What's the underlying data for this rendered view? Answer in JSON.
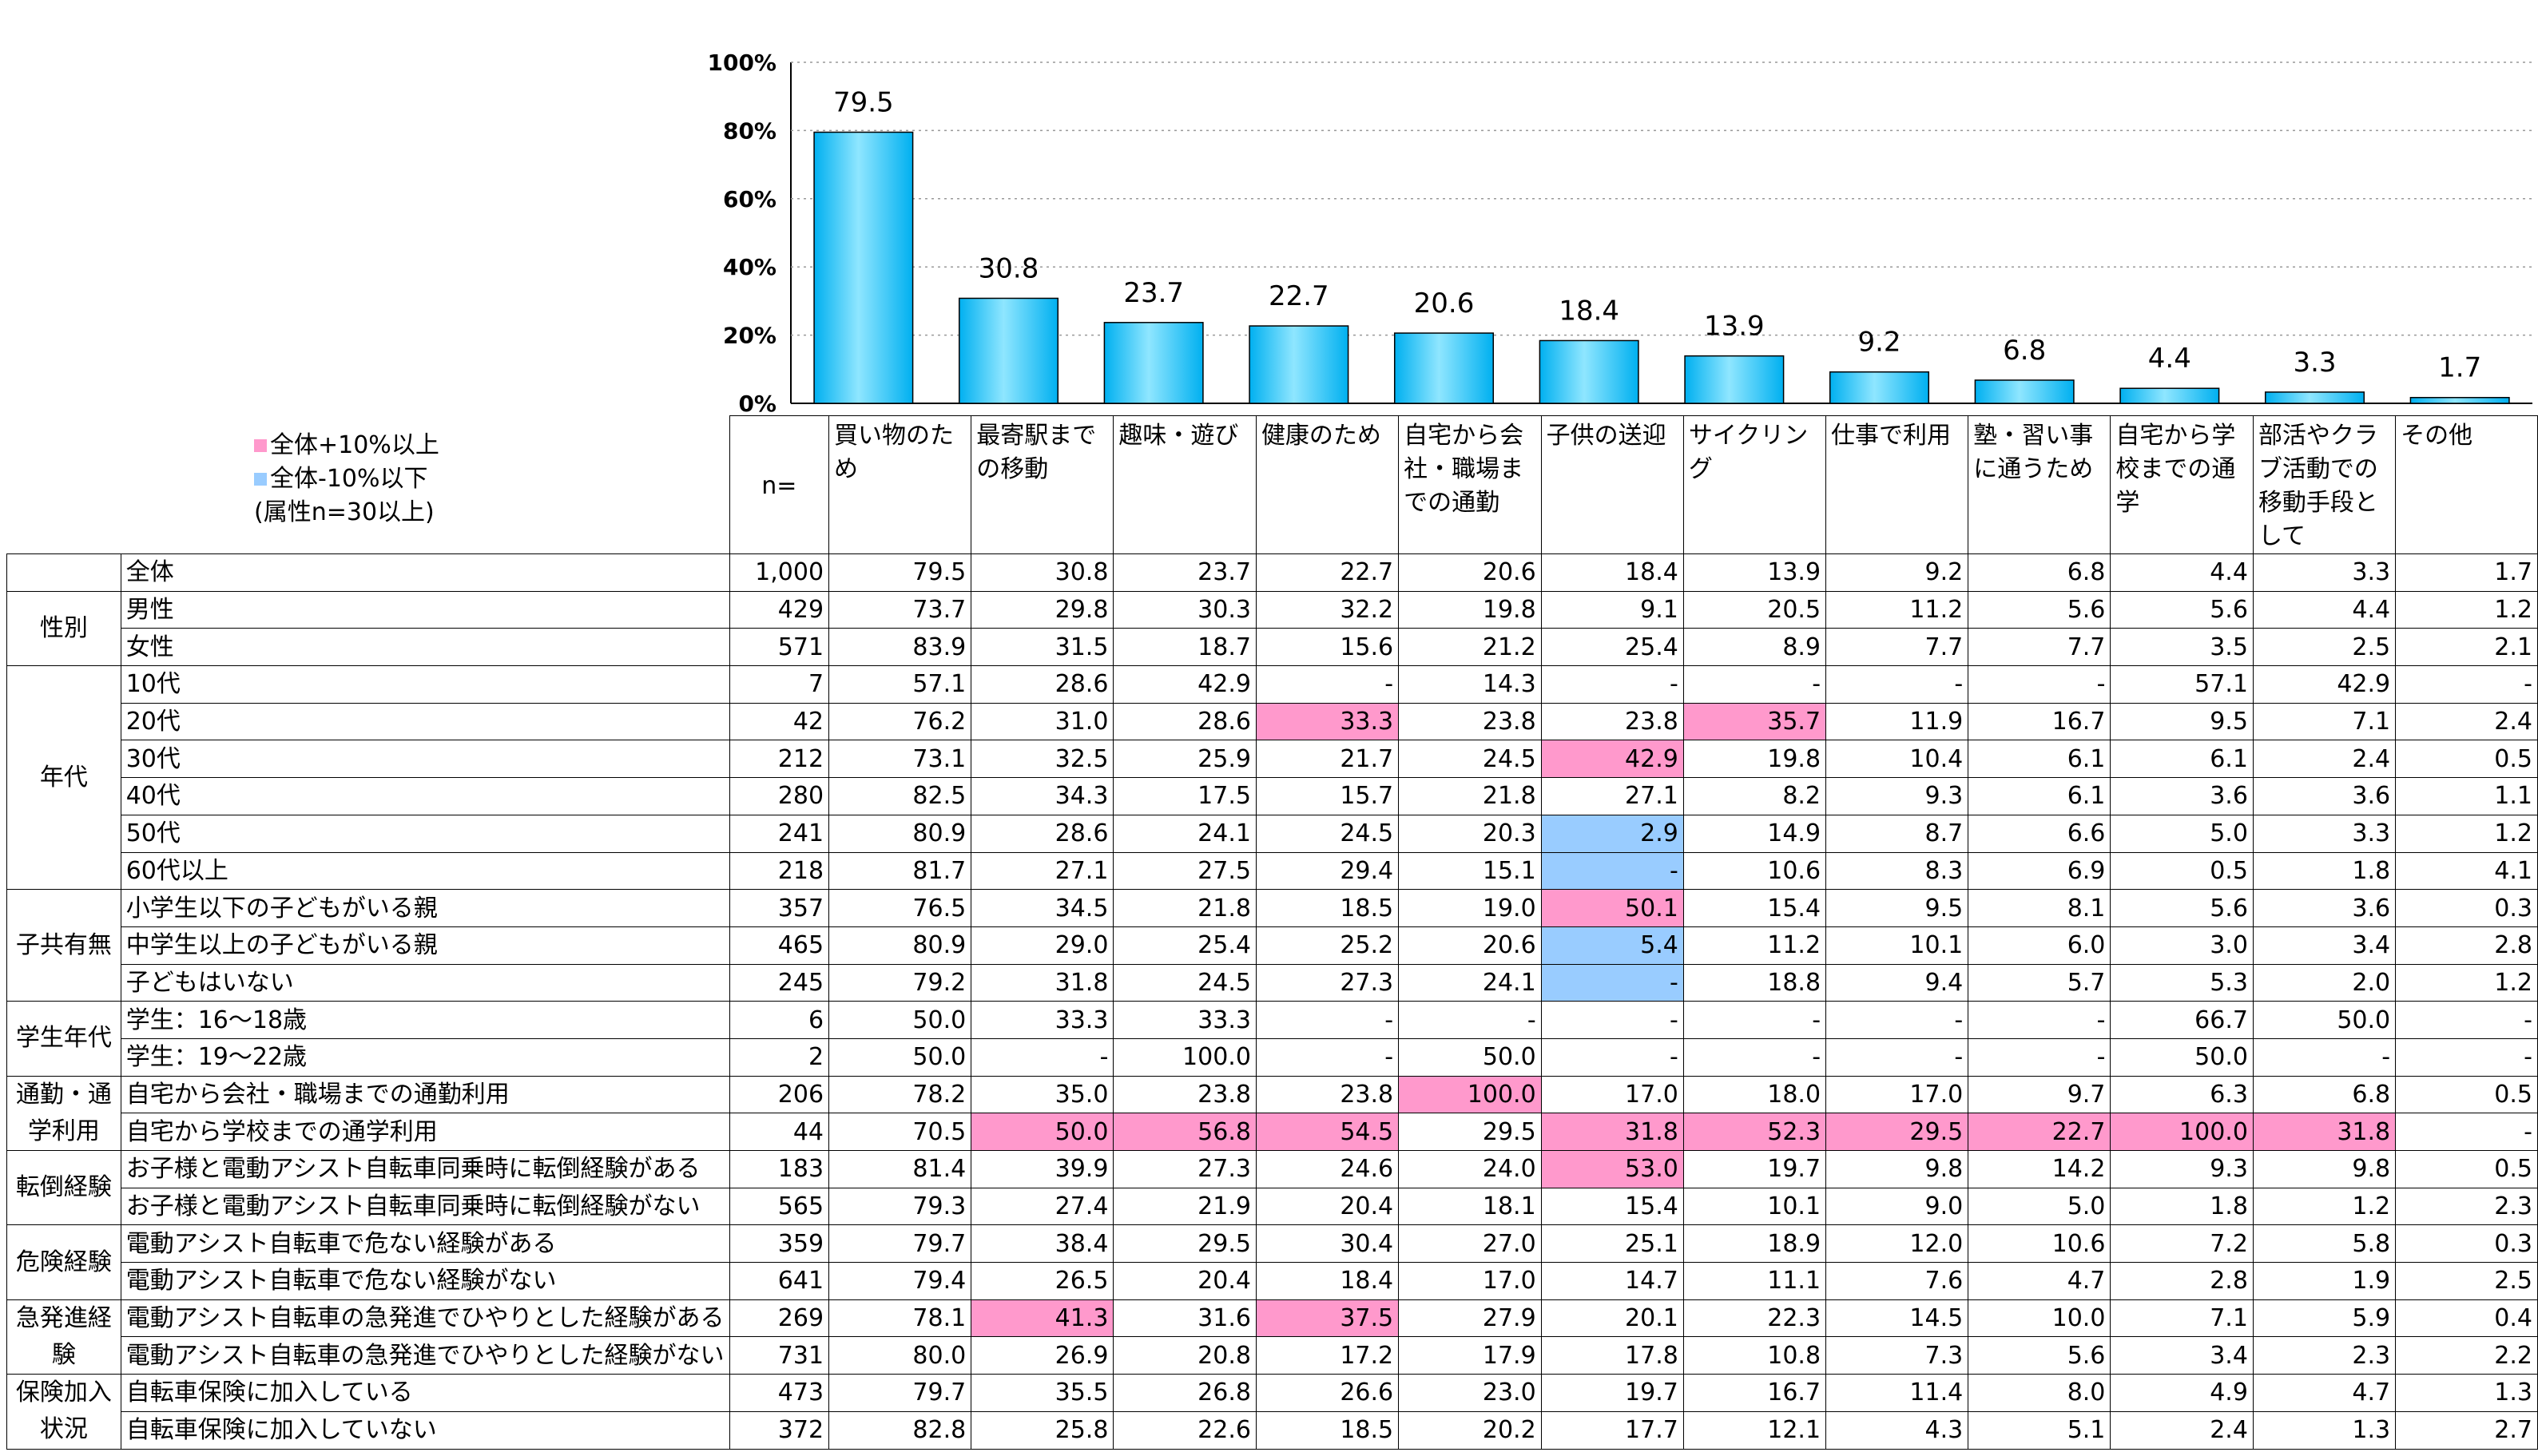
{
  "chart_data": {
    "type": "bar",
    "title": "",
    "xlabel": "",
    "ylabel": "",
    "ylim": [
      0,
      100
    ],
    "y_ticks": [
      "0%",
      "20%",
      "40%",
      "60%",
      "80%",
      "100%"
    ],
    "grid": true,
    "categories": [
      "買い物のため",
      "最寄駅までの移動",
      "趣味・遊び",
      "健康のため",
      "自宅から会社・職場までの通勤",
      "子供の送迎",
      "サイクリング",
      "仕事で利用",
      "塾・習い事に通うため",
      "自宅から学校までの通学",
      "部活やクラブ活動での移動手段として",
      "その他"
    ],
    "values": [
      79.5,
      30.8,
      23.7,
      22.7,
      20.6,
      18.4,
      13.9,
      9.2,
      6.8,
      4.4,
      3.3,
      1.7
    ],
    "value_labels": [
      "79.5",
      "30.8",
      "23.7",
      "22.7",
      "20.6",
      "18.4",
      "13.9",
      "9.2",
      "6.8",
      "4.4",
      "3.3",
      "1.7"
    ],
    "bar_color": "#00b0f0"
  },
  "legend": {
    "high": "全体+10%以上",
    "low": "全体-10%以下",
    "note": "(属性n=30以上)",
    "high_color": "#ff99cc",
    "low_color": "#99ccff"
  },
  "table": {
    "n_header": "n=",
    "columns": [
      "買い物のため",
      "最寄駅までの移動",
      "趣味・遊び",
      "健康のため",
      "自宅から会社・職場までの通勤",
      "子供の送迎",
      "サイクリング",
      "仕事で利用",
      "塾・習い事に通うため",
      "自宅から学校までの通学",
      "部活やクラブ活動での移動手段として",
      "その他"
    ],
    "groups": [
      {
        "name": "",
        "rows": [
          {
            "label": "全体",
            "n": "1,000",
            "values": [
              "79.5",
              "30.8",
              "23.7",
              "22.7",
              "20.6",
              "18.4",
              "13.9",
              "9.2",
              "6.8",
              "4.4",
              "3.3",
              "1.7"
            ],
            "marks": [
              "",
              "",
              "",
              "",
              "",
              "",
              "",
              "",
              "",
              "",
              "",
              ""
            ]
          }
        ]
      },
      {
        "name": "性別",
        "rows": [
          {
            "label": "男性",
            "n": "429",
            "values": [
              "73.7",
              "29.8",
              "30.3",
              "32.2",
              "19.8",
              "9.1",
              "20.5",
              "11.2",
              "5.6",
              "5.6",
              "4.4",
              "1.2"
            ],
            "marks": [
              "",
              "",
              "",
              "",
              "",
              "",
              "",
              "",
              "",
              "",
              "",
              ""
            ]
          },
          {
            "label": "女性",
            "n": "571",
            "values": [
              "83.9",
              "31.5",
              "18.7",
              "15.6",
              "21.2",
              "25.4",
              "8.9",
              "7.7",
              "7.7",
              "3.5",
              "2.5",
              "2.1"
            ],
            "marks": [
              "",
              "",
              "",
              "",
              "",
              "",
              "",
              "",
              "",
              "",
              "",
              ""
            ]
          }
        ]
      },
      {
        "name": "年代",
        "rows": [
          {
            "label": "10代",
            "n": "7",
            "values": [
              "57.1",
              "28.6",
              "42.9",
              "-",
              "14.3",
              "-",
              "-",
              "-",
              "-",
              "57.1",
              "42.9",
              "-"
            ],
            "marks": [
              "",
              "",
              "",
              "",
              "",
              "",
              "",
              "",
              "",
              "",
              "",
              ""
            ]
          },
          {
            "label": "20代",
            "n": "42",
            "values": [
              "76.2",
              "31.0",
              "28.6",
              "33.3",
              "23.8",
              "23.8",
              "35.7",
              "11.9",
              "16.7",
              "9.5",
              "7.1",
              "2.4"
            ],
            "marks": [
              "",
              "",
              "",
              "hi",
              "",
              "",
              "hi",
              "",
              "",
              "",
              "",
              ""
            ]
          },
          {
            "label": "30代",
            "n": "212",
            "values": [
              "73.1",
              "32.5",
              "25.9",
              "21.7",
              "24.5",
              "42.9",
              "19.8",
              "10.4",
              "6.1",
              "6.1",
              "2.4",
              "0.5"
            ],
            "marks": [
              "",
              "",
              "",
              "",
              "",
              "hi",
              "",
              "",
              "",
              "",
              "",
              ""
            ]
          },
          {
            "label": "40代",
            "n": "280",
            "values": [
              "82.5",
              "34.3",
              "17.5",
              "15.7",
              "21.8",
              "27.1",
              "8.2",
              "9.3",
              "6.1",
              "3.6",
              "3.6",
              "1.1"
            ],
            "marks": [
              "",
              "",
              "",
              "",
              "",
              "",
              "",
              "",
              "",
              "",
              "",
              ""
            ]
          },
          {
            "label": "50代",
            "n": "241",
            "values": [
              "80.9",
              "28.6",
              "24.1",
              "24.5",
              "20.3",
              "2.9",
              "14.9",
              "8.7",
              "6.6",
              "5.0",
              "3.3",
              "1.2"
            ],
            "marks": [
              "",
              "",
              "",
              "",
              "",
              "lo",
              "",
              "",
              "",
              "",
              "",
              ""
            ]
          },
          {
            "label": "60代以上",
            "n": "218",
            "values": [
              "81.7",
              "27.1",
              "27.5",
              "29.4",
              "15.1",
              "-",
              "10.6",
              "8.3",
              "6.9",
              "0.5",
              "1.8",
              "4.1"
            ],
            "marks": [
              "",
              "",
              "",
              "",
              "",
              "lo",
              "",
              "",
              "",
              "",
              "",
              ""
            ]
          }
        ]
      },
      {
        "name": "子共有無",
        "rows": [
          {
            "label": "小学生以下の子どもがいる親",
            "n": "357",
            "values": [
              "76.5",
              "34.5",
              "21.8",
              "18.5",
              "19.0",
              "50.1",
              "15.4",
              "9.5",
              "8.1",
              "5.6",
              "3.6",
              "0.3"
            ],
            "marks": [
              "",
              "",
              "",
              "",
              "",
              "hi",
              "",
              "",
              "",
              "",
              "",
              ""
            ]
          },
          {
            "label": "中学生以上の子どもがいる親",
            "n": "465",
            "values": [
              "80.9",
              "29.0",
              "25.4",
              "25.2",
              "20.6",
              "5.4",
              "11.2",
              "10.1",
              "6.0",
              "3.0",
              "3.4",
              "2.8"
            ],
            "marks": [
              "",
              "",
              "",
              "",
              "",
              "lo",
              "",
              "",
              "",
              "",
              "",
              ""
            ]
          },
          {
            "label": "子どもはいない",
            "n": "245",
            "values": [
              "79.2",
              "31.8",
              "24.5",
              "27.3",
              "24.1",
              "-",
              "18.8",
              "9.4",
              "5.7",
              "5.3",
              "2.0",
              "1.2"
            ],
            "marks": [
              "",
              "",
              "",
              "",
              "",
              "lo",
              "",
              "",
              "",
              "",
              "",
              ""
            ]
          }
        ]
      },
      {
        "name": "学生年代",
        "rows": [
          {
            "label": "学生：16～18歳",
            "n": "6",
            "values": [
              "50.0",
              "33.3",
              "33.3",
              "-",
              "-",
              "-",
              "-",
              "-",
              "-",
              "66.7",
              "50.0",
              "-"
            ],
            "marks": [
              "",
              "",
              "",
              "",
              "",
              "",
              "",
              "",
              "",
              "",
              "",
              ""
            ]
          },
          {
            "label": "学生：19～22歳",
            "n": "2",
            "values": [
              "50.0",
              "-",
              "100.0",
              "-",
              "50.0",
              "-",
              "-",
              "-",
              "-",
              "50.0",
              "-",
              "-"
            ],
            "marks": [
              "",
              "",
              "",
              "",
              "",
              "",
              "",
              "",
              "",
              "",
              "",
              ""
            ]
          }
        ]
      },
      {
        "name": "通勤・通学利用",
        "rows": [
          {
            "label": "自宅から会社・職場までの通勤利用",
            "n": "206",
            "values": [
              "78.2",
              "35.0",
              "23.8",
              "23.8",
              "100.0",
              "17.0",
              "18.0",
              "17.0",
              "9.7",
              "6.3",
              "6.8",
              "0.5"
            ],
            "marks": [
              "",
              "",
              "",
              "",
              "hi",
              "",
              "",
              "",
              "",
              "",
              "",
              ""
            ]
          },
          {
            "label": "自宅から学校までの通学利用",
            "n": "44",
            "values": [
              "70.5",
              "50.0",
              "56.8",
              "54.5",
              "29.5",
              "31.8",
              "52.3",
              "29.5",
              "22.7",
              "100.0",
              "31.8",
              "-"
            ],
            "marks": [
              "",
              "hi",
              "hi",
              "hi",
              "",
              "hi",
              "hi",
              "hi",
              "hi",
              "hi",
              "hi",
              ""
            ]
          }
        ]
      },
      {
        "name": "転倒経験",
        "rows": [
          {
            "label": "お子様と電動アシスト自転車同乗時に転倒経験がある",
            "n": "183",
            "values": [
              "81.4",
              "39.9",
              "27.3",
              "24.6",
              "24.0",
              "53.0",
              "19.7",
              "9.8",
              "14.2",
              "9.3",
              "9.8",
              "0.5"
            ],
            "marks": [
              "",
              "",
              "",
              "",
              "",
              "hi",
              "",
              "",
              "",
              "",
              "",
              ""
            ]
          },
          {
            "label": "お子様と電動アシスト自転車同乗時に転倒経験がない",
            "n": "565",
            "values": [
              "79.3",
              "27.4",
              "21.9",
              "20.4",
              "18.1",
              "15.4",
              "10.1",
              "9.0",
              "5.0",
              "1.8",
              "1.2",
              "2.3"
            ],
            "marks": [
              "",
              "",
              "",
              "",
              "",
              "",
              "",
              "",
              "",
              "",
              "",
              ""
            ]
          }
        ]
      },
      {
        "name": "危険経験",
        "rows": [
          {
            "label": "電動アシスト自転車で危ない経験がある",
            "n": "359",
            "values": [
              "79.7",
              "38.4",
              "29.5",
              "30.4",
              "27.0",
              "25.1",
              "18.9",
              "12.0",
              "10.6",
              "7.2",
              "5.8",
              "0.3"
            ],
            "marks": [
              "",
              "",
              "",
              "",
              "",
              "",
              "",
              "",
              "",
              "",
              "",
              ""
            ]
          },
          {
            "label": "電動アシスト自転車で危ない経験がない",
            "n": "641",
            "values": [
              "79.4",
              "26.5",
              "20.4",
              "18.4",
              "17.0",
              "14.7",
              "11.1",
              "7.6",
              "4.7",
              "2.8",
              "1.9",
              "2.5"
            ],
            "marks": [
              "",
              "",
              "",
              "",
              "",
              "",
              "",
              "",
              "",
              "",
              "",
              ""
            ]
          }
        ]
      },
      {
        "name": "急発進経験",
        "rows": [
          {
            "label": "電動アシスト自転車の急発進でひやりとした経験がある",
            "n": "269",
            "values": [
              "78.1",
              "41.3",
              "31.6",
              "37.5",
              "27.9",
              "20.1",
              "22.3",
              "14.5",
              "10.0",
              "7.1",
              "5.9",
              "0.4"
            ],
            "marks": [
              "",
              "hi",
              "",
              "hi",
              "",
              "",
              "",
              "",
              "",
              "",
              "",
              ""
            ]
          },
          {
            "label": "電動アシスト自転車の急発進でひやりとした経験がない",
            "n": "731",
            "values": [
              "80.0",
              "26.9",
              "20.8",
              "17.2",
              "17.9",
              "17.8",
              "10.8",
              "7.3",
              "5.6",
              "3.4",
              "2.3",
              "2.2"
            ],
            "marks": [
              "",
              "",
              "",
              "",
              "",
              "",
              "",
              "",
              "",
              "",
              "",
              ""
            ]
          }
        ]
      },
      {
        "name": "保険加入状況",
        "rows": [
          {
            "label": "自転車保険に加入している",
            "n": "473",
            "values": [
              "79.7",
              "35.5",
              "26.8",
              "26.6",
              "23.0",
              "19.7",
              "16.7",
              "11.4",
              "8.0",
              "4.9",
              "4.7",
              "1.3"
            ],
            "marks": [
              "",
              "",
              "",
              "",
              "",
              "",
              "",
              "",
              "",
              "",
              "",
              ""
            ]
          },
          {
            "label": "自転車保険に加入していない",
            "n": "372",
            "values": [
              "82.8",
              "25.8",
              "22.6",
              "18.5",
              "20.2",
              "17.7",
              "12.1",
              "4.3",
              "5.1",
              "2.4",
              "1.3",
              "2.7"
            ],
            "marks": [
              "",
              "",
              "",
              "",
              "",
              "",
              "",
              "",
              "",
              "",
              "",
              ""
            ]
          }
        ]
      }
    ]
  }
}
